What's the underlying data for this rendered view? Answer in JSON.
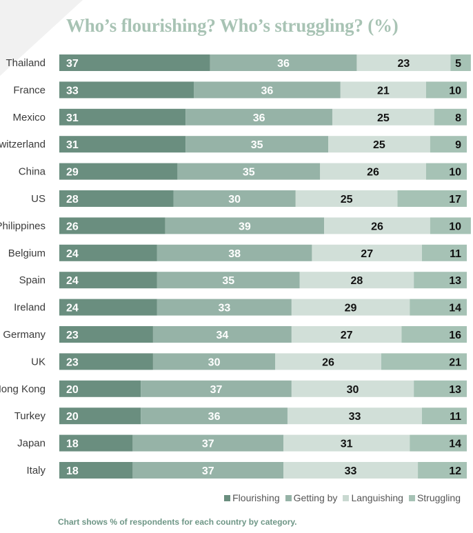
{
  "chart_data": {
    "type": "bar",
    "orientation": "horizontal",
    "stacked": true,
    "title": "Who’s flourishing? Who’s struggling? (%)",
    "categories": [
      "Thailand",
      "France",
      "Mexico",
      "Switzerland",
      "China",
      "US",
      "Philippines",
      "Belgium",
      "Spain",
      "Ireland",
      "Germany",
      "UK",
      "Hong Kong",
      "Turkey",
      "Japan",
      "Italy"
    ],
    "series": [
      {
        "name": "Flourishing",
        "color": "#6a8e7f",
        "label_color": "#ffffff",
        "values": [
          37,
          33,
          31,
          31,
          29,
          28,
          26,
          24,
          24,
          24,
          23,
          23,
          20,
          20,
          18,
          18
        ]
      },
      {
        "name": "Getting by",
        "color": "#96b3a7",
        "label_color": "#ffffff",
        "values": [
          36,
          36,
          36,
          35,
          35,
          30,
          39,
          38,
          35,
          33,
          34,
          30,
          37,
          36,
          37,
          37
        ]
      },
      {
        "name": "Languishing",
        "color": "#d1dfd8",
        "label_color": "#111111",
        "values": [
          23,
          21,
          25,
          25,
          26,
          25,
          26,
          27,
          28,
          29,
          27,
          26,
          30,
          33,
          31,
          33
        ]
      },
      {
        "name": "Struggling",
        "color": "#a6c2b5",
        "label_color": "#111111",
        "values": [
          5,
          10,
          8,
          9,
          10,
          17,
          10,
          11,
          13,
          14,
          16,
          21,
          13,
          11,
          14,
          12
        ]
      }
    ],
    "xlim": [
      0,
      100
    ],
    "legend_position": "bottom-right",
    "footnote": "Chart shows % of respondents for each country by category."
  }
}
